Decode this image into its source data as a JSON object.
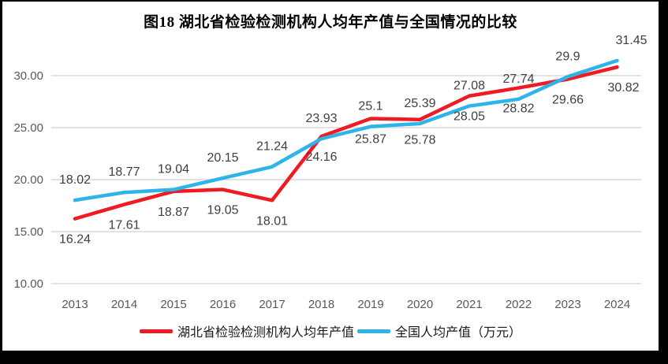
{
  "chart_data": {
    "type": "line",
    "title": "图18  湖北省检验检测机构人均年产值与全国情况的比较",
    "categories": [
      "2013",
      "2014",
      "2015",
      "2016",
      "2017",
      "2018",
      "2019",
      "2020",
      "2021",
      "2022",
      "2023",
      "2024"
    ],
    "series": [
      {
        "name": "湖北省检验检测机构人均年产值",
        "color": "#ee1b23",
        "label_position": "below",
        "values": [
          16.24,
          17.61,
          18.87,
          19.05,
          18.01,
          24.16,
          25.87,
          25.78,
          28.05,
          28.82,
          29.66,
          30.82
        ],
        "labels": [
          "16.24",
          "17.61",
          "18.87",
          "19.05",
          "18.01",
          "24.16",
          "25.87",
          "25.78",
          "28.05",
          "28.82",
          "29.66",
          "30.82"
        ]
      },
      {
        "name": "全国人均产值（万元）",
        "color": "#2fb4e9",
        "label_position": "above",
        "values": [
          18.02,
          18.77,
          19.04,
          20.15,
          21.24,
          23.93,
          25.1,
          25.39,
          27.08,
          27.74,
          29.9,
          31.45
        ],
        "labels": [
          "18.02",
          "18.77",
          "19.04",
          "20.15",
          "21.24",
          "23.93",
          "25.1",
          "25.39",
          "27.08",
          "27.74",
          "29.9",
          "31.45"
        ]
      }
    ],
    "y_axis": {
      "min": 10,
      "max": 33,
      "ticks": [
        10,
        15,
        20,
        25,
        30
      ],
      "tick_labels": [
        "10.00",
        "15.00",
        "20.00",
        "25.00",
        "30.00"
      ]
    },
    "grid": true,
    "legend_position": "bottom",
    "colors": {
      "gridline": "#d9d9d9",
      "axis_text": "#595959",
      "data_label_text": "#3f3f3f",
      "background": "#ffffff",
      "frame": "#000000"
    }
  }
}
